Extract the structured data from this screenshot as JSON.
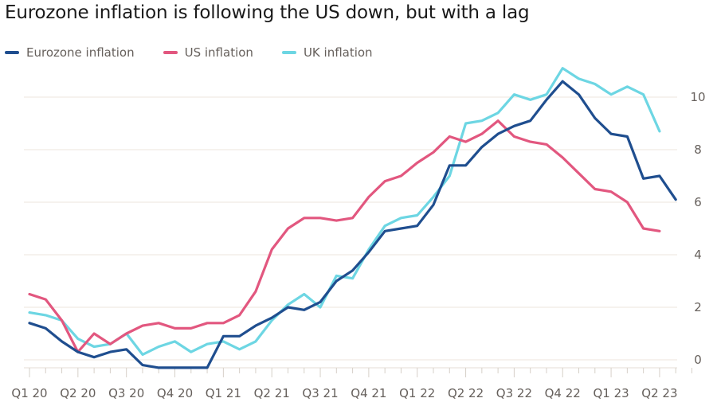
{
  "chart_data": {
    "type": "line",
    "title": "Eurozone inflation is following the US down, but with a lag",
    "xlabel": "",
    "ylabel": "",
    "x_start": "Jan 2020",
    "x_frequency": "monthly",
    "x_tick_labels": [
      "Q1 20",
      "Q2 20",
      "Q3 20",
      "Q4 20",
      "Q1 21",
      "Q2 21",
      "Q3 21",
      "Q4 21",
      "Q1 22",
      "Q2 22",
      "Q3 22",
      "Q4 22",
      "Q1 23",
      "Q2 23"
    ],
    "ylim": [
      -0.3,
      11
    ],
    "y_ticks": [
      0,
      2,
      4,
      6,
      8,
      10
    ],
    "grid": true,
    "legend_position": "top-left",
    "series": [
      {
        "name": "Eurozone inflation",
        "color": "#1f4e8f",
        "values": [
          1.4,
          1.2,
          0.7,
          0.3,
          0.1,
          0.3,
          0.4,
          -0.2,
          -0.3,
          -0.3,
          -0.3,
          -0.3,
          0.9,
          0.9,
          1.3,
          1.6,
          2.0,
          1.9,
          2.2,
          3.0,
          3.4,
          4.1,
          4.9,
          5.0,
          5.1,
          5.9,
          7.4,
          7.4,
          8.1,
          8.6,
          8.9,
          9.1,
          9.9,
          10.6,
          10.1,
          9.2,
          8.6,
          8.5,
          6.9,
          7.0,
          6.1
        ]
      },
      {
        "name": "US inflation",
        "color": "#e2577f",
        "values": [
          2.5,
          2.3,
          1.5,
          0.3,
          1.0,
          0.6,
          1.0,
          1.3,
          1.4,
          1.2,
          1.2,
          1.4,
          1.4,
          1.7,
          2.6,
          4.2,
          5.0,
          5.4,
          5.4,
          5.3,
          5.4,
          6.2,
          6.8,
          7.0,
          7.5,
          7.9,
          8.5,
          8.3,
          8.6,
          9.1,
          8.5,
          8.3,
          8.2,
          7.7,
          7.1,
          6.5,
          6.4,
          6.0,
          5.0,
          4.9
        ]
      },
      {
        "name": "UK inflation",
        "color": "#6dd6e3",
        "values": [
          1.8,
          1.7,
          1.5,
          0.8,
          0.5,
          0.6,
          1.0,
          0.2,
          0.5,
          0.7,
          0.3,
          0.6,
          0.7,
          0.4,
          0.7,
          1.5,
          2.1,
          2.5,
          2.0,
          3.2,
          3.1,
          4.2,
          5.1,
          5.4,
          5.5,
          6.2,
          7.0,
          9.0,
          9.1,
          9.4,
          10.1,
          9.9,
          10.1,
          11.1,
          10.7,
          10.5,
          10.1,
          10.4,
          10.1,
          8.7
        ]
      }
    ]
  }
}
